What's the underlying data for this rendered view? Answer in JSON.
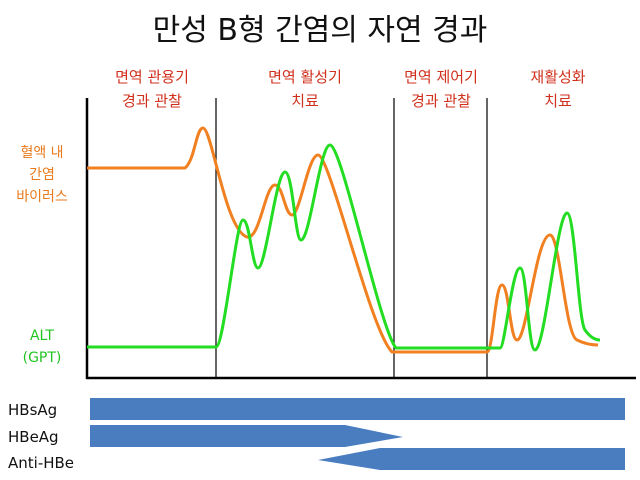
{
  "title": "만성 B형 간염의 자연 경과",
  "phases": [
    {
      "lines": [
        "면역 관용기",
        "경과 관찰"
      ]
    },
    {
      "lines": [
        "면역 활성기",
        "치료"
      ]
    },
    {
      "lines": [
        "면역 제어기",
        "경과 관찰"
      ]
    },
    {
      "lines": [
        "재활성화",
        "치료"
      ]
    }
  ],
  "curves": {
    "virus": {
      "lines": [
        "혈액 내",
        "간염",
        "바이러스"
      ]
    },
    "alt": {
      "lines": [
        "ALT",
        "(GPT)"
      ]
    }
  },
  "markers": [
    "HBsAg",
    "HBeAg",
    "Anti-HBe"
  ]
}
